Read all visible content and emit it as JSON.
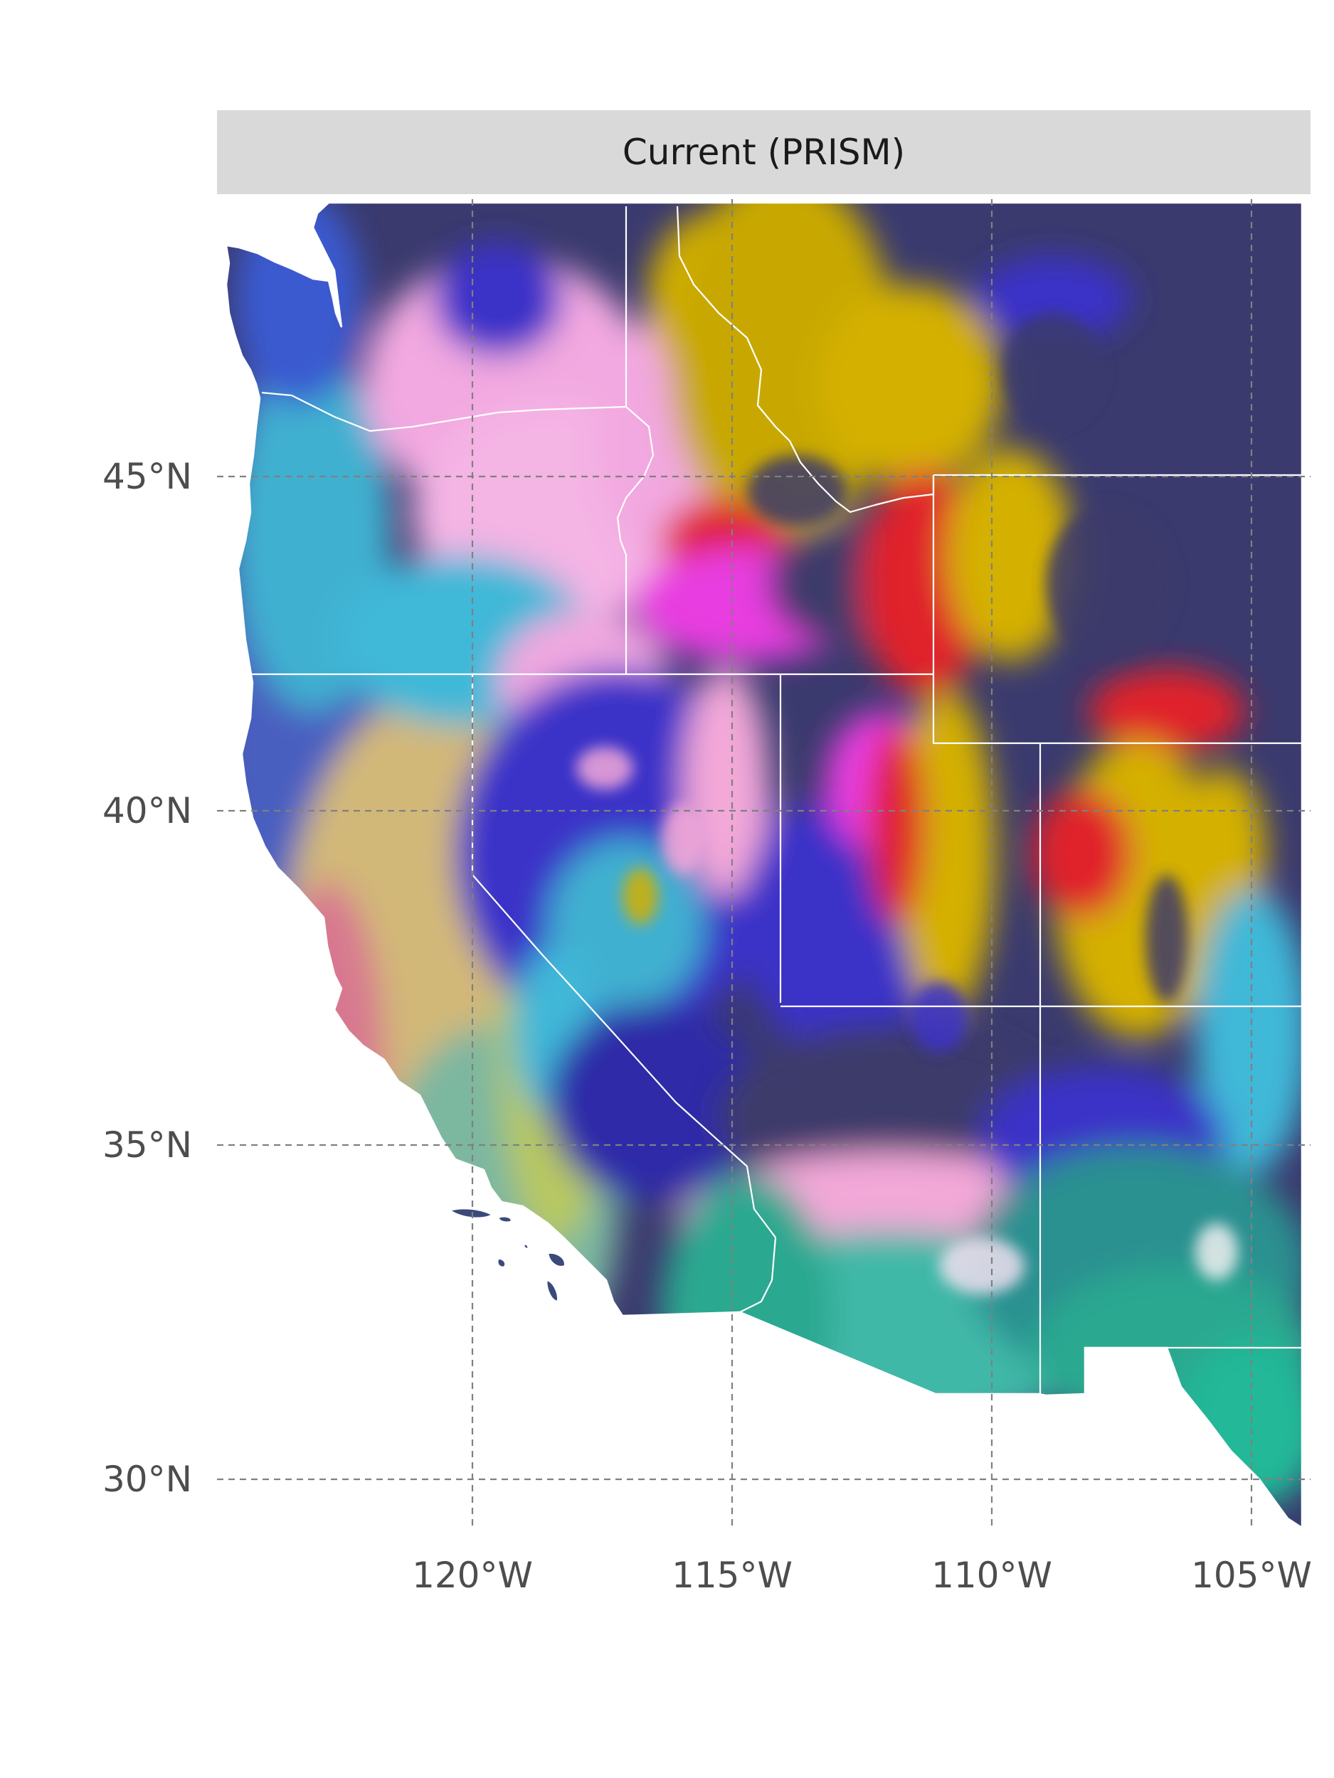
{
  "panel": {
    "title": "Current (PRISM)"
  },
  "axes": {
    "lat_ticks": [
      {
        "value": 45,
        "label": "45°N"
      },
      {
        "value": 40,
        "label": "40°N"
      },
      {
        "value": 35,
        "label": "35°N"
      },
      {
        "value": 30,
        "label": "30°N"
      }
    ],
    "lon_ticks": [
      {
        "value": -120,
        "label": "120°W"
      },
      {
        "value": -115,
        "label": "115°W"
      },
      {
        "value": -110,
        "label": "110°W"
      },
      {
        "value": -105,
        "label": "105°W"
      }
    ],
    "grid": "dashed",
    "grid_color": "#808080",
    "tick_label_color": "#4d4d4d"
  },
  "map": {
    "region": "Western United States",
    "rendering": "multicolor RGB raster composite",
    "boundary_color": "#ffffff",
    "dominant_colors": [
      "#3d3a6a",
      "#3a33c8",
      "#d4b000",
      "#e0202a",
      "#e83ce0",
      "#f3a8d8",
      "#3fb8d8",
      "#2aa890",
      "#d87890",
      "#c8c070"
    ]
  }
}
